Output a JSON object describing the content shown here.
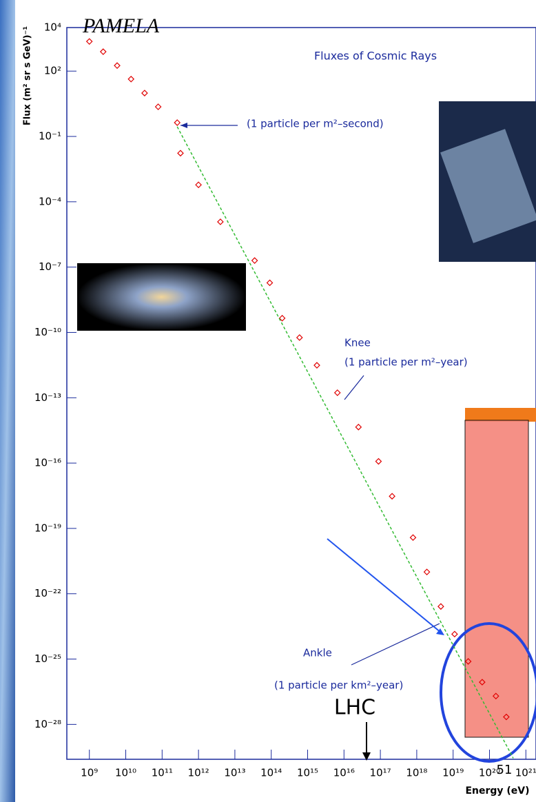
{
  "chart_data": {
    "type": "scatter",
    "title": "Fluxes of Cosmic Rays",
    "xlabel": "Energy (eV)",
    "ylabel": "Flux (m² sr s GeV)⁻¹",
    "xscale": "log",
    "yscale": "log",
    "xlim": [
      240000000.0,
      1.9e+21
    ],
    "ylim": [
      2.5e-30,
      10000.0
    ],
    "xticks": [
      {
        "value": 1000000000.0,
        "label": "10⁹"
      },
      {
        "value": 10000000000.0,
        "label": "10¹⁰"
      },
      {
        "value": 100000000000.0,
        "label": "10¹¹"
      },
      {
        "value": 1000000000000.0,
        "label": "10¹²"
      },
      {
        "value": 10000000000000.0,
        "label": "10¹³"
      },
      {
        "value": 100000000000000.0,
        "label": "10¹⁴"
      },
      {
        "value": 1000000000000000.0,
        "label": "10¹⁵"
      },
      {
        "value": 1e+16,
        "label": "10¹⁶"
      },
      {
        "value": 1e+17,
        "label": "10¹⁷"
      },
      {
        "value": 1e+18,
        "label": "10¹⁸"
      },
      {
        "value": 1e+19,
        "label": "10¹⁹"
      },
      {
        "value": 1e+20,
        "label": "10²⁰"
      },
      {
        "value": 1e+21,
        "label": "10²¹"
      }
    ],
    "yticks": [
      {
        "value": 10000.0,
        "label": "10⁴"
      },
      {
        "value": 100.0,
        "label": "10²"
      },
      {
        "value": 0.1,
        "label": "10⁻¹"
      },
      {
        "value": 0.0001,
        "label": "10⁻⁴"
      },
      {
        "value": 1e-07,
        "label": "10⁻⁷"
      },
      {
        "value": 1e-10,
        "label": "10⁻¹⁰"
      },
      {
        "value": 1e-13,
        "label": "10⁻¹³"
      },
      {
        "value": 1e-16,
        "label": "10⁻¹⁶"
      },
      {
        "value": 1e-19,
        "label": "10⁻¹⁹"
      },
      {
        "value": 1e-22,
        "label": "10⁻²²"
      },
      {
        "value": 1e-25,
        "label": "10⁻²⁵"
      },
      {
        "value": 1e-28,
        "label": "10⁻²⁸"
      }
    ],
    "series": [
      {
        "color": "#e00000",
        "x": [
          1000000000.0,
          2400000000.0,
          5800000000.0,
          14000000000.0,
          33000000000.0,
          78000000000.0,
          260000000000.0,
          320000000000.0,
          1000000000000.0,
          4000000000000.0,
          35000000000000.0,
          91000000000000.0,
          200000000000000.0,
          600000000000000.0,
          1800000000000000.0,
          6600000000000000.0,
          2.5e+16,
          8.9e+16,
          2.1e+17,
          7.9e+17,
          1.9e+18,
          4.6e+18,
          1.1e+19,
          2.6e+19,
          6.3e+19,
          1.5e+20,
          2.9e+20
        ],
        "values": [
          2300.0,
          780.0,
          180.0,
          43,
          9.8,
          2.3,
          0.43,
          0.017,
          0.0006,
          1.2e-05,
          2e-07,
          1.9e-08,
          4.5e-10,
          5.8e-11,
          3.1e-12,
          1.7e-13,
          4.5e-15,
          1.2e-16,
          3e-18,
          3.8e-20,
          1e-21,
          2.6e-23,
          1.4e-24,
          7.8e-26,
          8.7e-27,
          2e-27,
          2.2e-28
        ]
      },
      {
        "color": "#33bb33",
        "type": "line",
        "x": [
          260000000000.0,
          4.5e+20
        ],
        "values": [
          0.28,
          2.8e-30
        ]
      }
    ],
    "annotations": [
      "PAMELA",
      "(1 particle per m²–second)",
      "Knee",
      "(1 particle per m²–year)",
      "Ankle",
      "(1 particle per km²–year)",
      "LHC",
      "51"
    ]
  }
}
